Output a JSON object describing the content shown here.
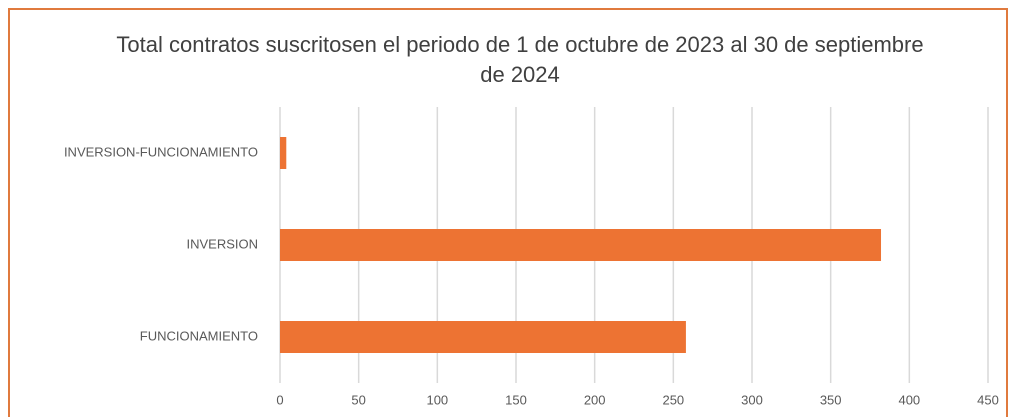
{
  "chart_data": {
    "type": "bar",
    "orientation": "horizontal",
    "title": "Total contratos suscritosen el periodo de 1 de octubre de 2023 al 30 de septiembre de 2024",
    "categories": [
      "INVERSION-FUNCIONAMIENTO",
      "INVERSION",
      "FUNCIONAMIENTO"
    ],
    "values": [
      4,
      382,
      258
    ],
    "color": "#ed7333",
    "xlim": [
      0,
      450
    ],
    "xticks": [
      0,
      50,
      100,
      150,
      200,
      250,
      300,
      350,
      400,
      450
    ],
    "grid": true
  }
}
